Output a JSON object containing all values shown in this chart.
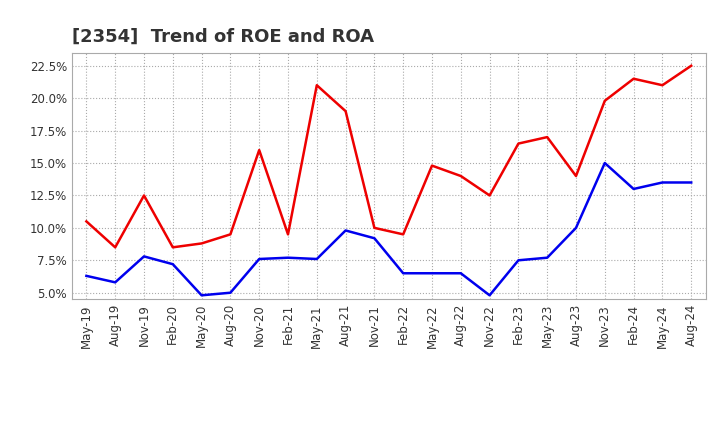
{
  "title": "[2354]  Trend of ROE and ROA",
  "x_labels": [
    "May-19",
    "Aug-19",
    "Nov-19",
    "Feb-20",
    "May-20",
    "Aug-20",
    "Nov-20",
    "Feb-21",
    "May-21",
    "Aug-21",
    "Nov-21",
    "Feb-22",
    "May-22",
    "Aug-22",
    "Nov-22",
    "Feb-23",
    "May-23",
    "Aug-23",
    "Nov-23",
    "Feb-24",
    "May-24",
    "Aug-24"
  ],
  "roe": [
    10.5,
    8.5,
    12.5,
    8.5,
    8.8,
    9.5,
    16.0,
    9.5,
    21.0,
    19.0,
    10.0,
    9.5,
    14.8,
    14.0,
    12.5,
    16.5,
    17.0,
    14.0,
    19.8,
    21.5,
    21.0,
    22.5
  ],
  "roa": [
    6.3,
    5.8,
    7.8,
    7.2,
    4.8,
    5.0,
    7.6,
    7.7,
    7.6,
    9.8,
    9.2,
    6.5,
    6.5,
    6.5,
    4.8,
    7.5,
    7.7,
    10.0,
    15.0,
    13.0,
    13.5,
    13.5
  ],
  "roe_color": "#EE0000",
  "roa_color": "#0000EE",
  "grid_color": "#aaaaaa",
  "title_color": "#333333",
  "background_color": "#ffffff",
  "ylim": [
    4.5,
    23.5
  ],
  "yticks": [
    5.0,
    7.5,
    10.0,
    12.5,
    15.0,
    17.5,
    20.0,
    22.5
  ],
  "title_fontsize": 13,
  "legend_fontsize": 10,
  "tick_fontsize": 8.5,
  "line_width": 1.8
}
